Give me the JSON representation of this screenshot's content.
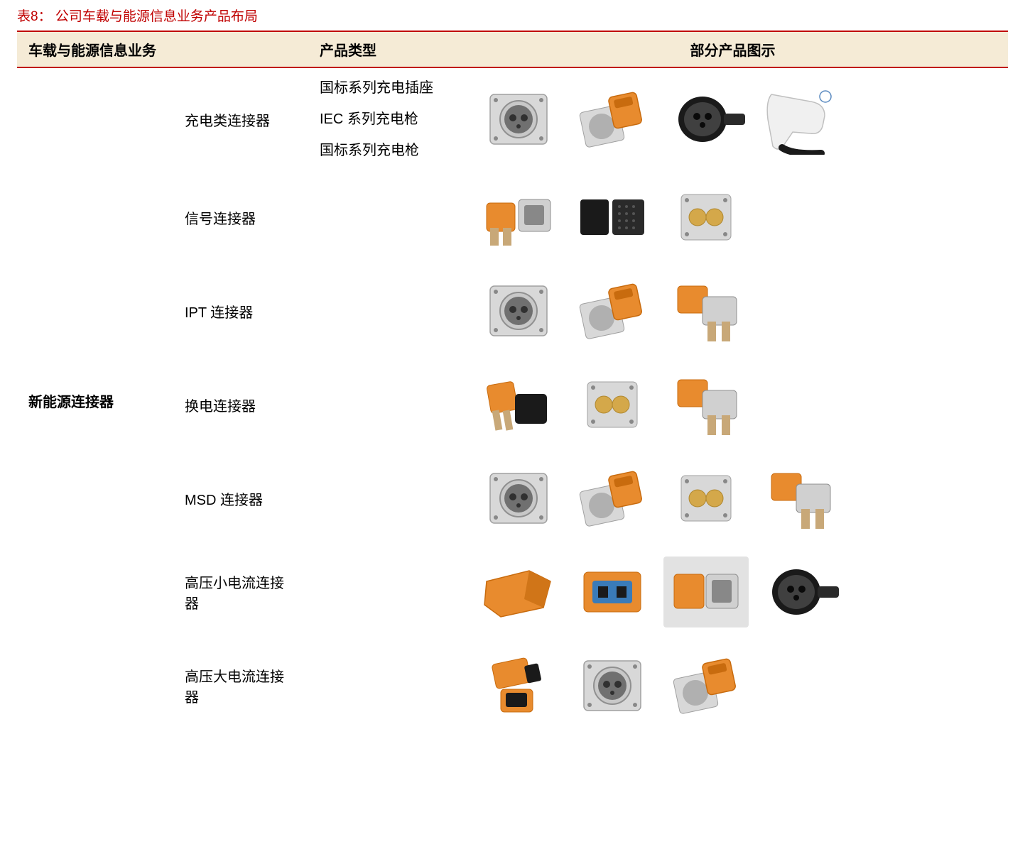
{
  "caption": "表8：  公司车载与能源信息业务产品布局",
  "columns": {
    "c1": "车载与能源信息业务",
    "c2": "产品类型",
    "c3": "部分产品图示"
  },
  "colors": {
    "accent": "#c00000",
    "header_bg": "#f5ebd6",
    "text": "#000000",
    "connector_silver": "#d0d0d0",
    "connector_silver_dark": "#a0a0a0",
    "connector_orange": "#e88b2e",
    "connector_orange_dark": "#c86b0e",
    "connector_black": "#1a1a1a",
    "connector_blue": "#3a7bb8",
    "connector_white": "#f0f0f0",
    "connector_gold": "#d4a84a",
    "grey_bg": "#e2e2e2"
  },
  "category": "新能源连接器",
  "rows": [
    {
      "type": "充电类连接器",
      "subtypes": [
        "国标系列充电插座",
        "IEC 系列充电枪",
        "国标系列充电枪"
      ],
      "images": [
        "silver-round-socket",
        "silver-orange-angled",
        "black-round-plug",
        "white-charge-gun"
      ]
    },
    {
      "type": "信号连接器",
      "subtypes": [],
      "images": [
        "orange-silver-pair",
        "black-multi-pin",
        "silver-gold-2pin"
      ]
    },
    {
      "type": "IPT 连接器",
      "subtypes": [],
      "images": [
        "silver-round-socket",
        "silver-orange-angled",
        "orange-silver-elbow"
      ]
    },
    {
      "type": "换电连接器",
      "subtypes": [],
      "images": [
        "orange-black-small",
        "silver-gold-2pin",
        "orange-silver-elbow"
      ]
    },
    {
      "type": "MSD 连接器",
      "subtypes": [],
      "images": [
        "silver-round-socket",
        "silver-orange-angled",
        "silver-gold-2pin",
        "orange-silver-elbow"
      ]
    },
    {
      "type": "高压小电流连接器",
      "subtypes": [],
      "images": [
        "orange-block",
        "orange-blue-plug",
        "orange-silver-grey",
        "black-round-plug"
      ]
    },
    {
      "type": "高压大电流连接器",
      "subtypes": [],
      "images": [
        "orange-black-stack",
        "silver-round-socket",
        "silver-orange-angled"
      ]
    }
  ]
}
